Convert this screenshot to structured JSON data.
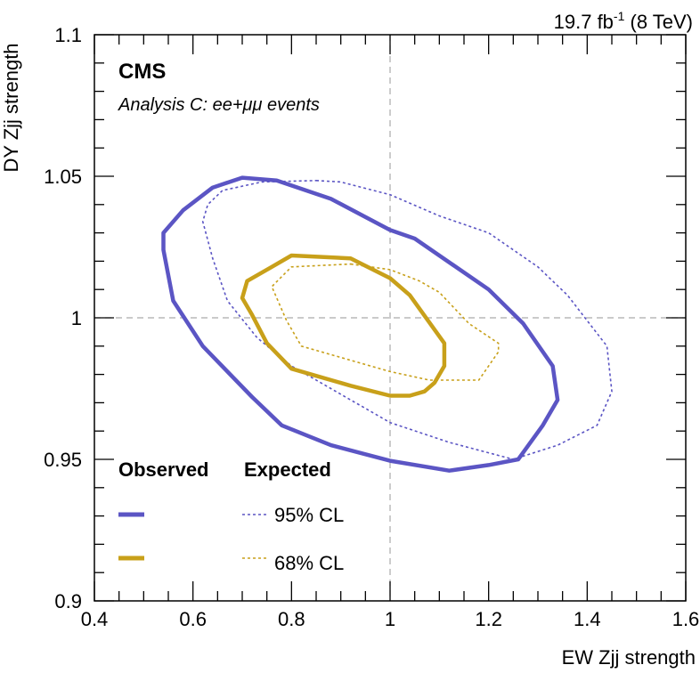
{
  "header": {
    "lumi_value": "19.7 fb",
    "lumi_exp": "-1",
    "lumi_energy": " (8 TeV)"
  },
  "labels": {
    "experiment": "CMS",
    "analysis": "Analysis C: ee+μμ events"
  },
  "legend": {
    "observed_header": "Observed",
    "expected_header": "Expected",
    "rows": [
      {
        "label": "95% CL",
        "color": "#5b55c4"
      },
      {
        "label": "68% CL",
        "color": "#c8a01a"
      }
    ]
  },
  "chart_data": {
    "type": "contour",
    "xlabel": "EW Zjj strength",
    "ylabel": "DY Zjj strength",
    "xlim": [
      0.4,
      1.6
    ],
    "ylim": [
      0.9,
      1.1
    ],
    "x_ticks": [
      "0.4",
      "0.6",
      "0.8",
      "1",
      "1.2",
      "1.4",
      "1.6"
    ],
    "y_ticks": [
      "0.9",
      "0.95",
      "1",
      "1.05",
      "1.1"
    ],
    "x_tick_values": [
      0.4,
      0.6,
      0.8,
      1.0,
      1.2,
      1.4,
      1.6
    ],
    "y_tick_values": [
      0.9,
      0.95,
      1.0,
      1.05,
      1.1
    ],
    "reference_lines": {
      "x": 1.0,
      "y": 1.0
    },
    "series": [
      {
        "name": "Observed 95% CL",
        "style": "solid",
        "color": "#5b55c4",
        "x": [
          0.7,
          0.77,
          0.88,
          1.0,
          1.05,
          1.2,
          1.27,
          1.33,
          1.34,
          1.31,
          1.26,
          1.2,
          1.12,
          1.0,
          0.88,
          0.78,
          0.72,
          0.62,
          0.56,
          0.54,
          0.54,
          0.58,
          0.64,
          0.7
        ],
        "y": [
          1.0495,
          1.0485,
          1.042,
          1.031,
          1.028,
          1.01,
          0.998,
          0.983,
          0.971,
          0.962,
          0.95,
          0.948,
          0.946,
          0.9495,
          0.955,
          0.962,
          0.972,
          0.99,
          1.006,
          1.024,
          1.03,
          1.038,
          1.046,
          1.0495
        ]
      },
      {
        "name": "Expected 95% CL",
        "style": "dashed",
        "color": "#5b55c4",
        "x": [
          0.85,
          0.9,
          1.0,
          1.1,
          1.2,
          1.3,
          1.36,
          1.44,
          1.45,
          1.42,
          1.34,
          1.25,
          1.12,
          1.0,
          0.88,
          0.8,
          0.73,
          0.67,
          0.64,
          0.62,
          0.63,
          0.66,
          0.74,
          0.85
        ],
        "y": [
          1.0485,
          1.048,
          1.0435,
          1.036,
          1.03,
          1.018,
          1.008,
          0.99,
          0.974,
          0.962,
          0.955,
          0.95,
          0.956,
          0.963,
          0.975,
          0.983,
          0.993,
          1.006,
          1.021,
          1.034,
          1.04,
          1.045,
          1.048,
          1.0485
        ]
      },
      {
        "name": "Observed 68% CL",
        "style": "solid",
        "color": "#c8a01a",
        "x": [
          0.8,
          0.92,
          1.0,
          1.04,
          1.11,
          1.11,
          1.09,
          1.07,
          1.04,
          1.0,
          0.92,
          0.8,
          0.75,
          0.72,
          0.7,
          0.71,
          0.76,
          0.8
        ],
        "y": [
          1.022,
          1.021,
          1.014,
          1.008,
          0.991,
          0.983,
          0.977,
          0.974,
          0.9725,
          0.9725,
          0.976,
          0.982,
          0.991,
          1.001,
          1.007,
          1.013,
          1.018,
          1.022
        ]
      },
      {
        "name": "Expected 68% CL",
        "style": "dashed",
        "color": "#c8a01a",
        "x": [
          0.92,
          1.0,
          1.06,
          1.1,
          1.16,
          1.22,
          1.22,
          1.18,
          1.15,
          1.08,
          1.0,
          0.92,
          0.82,
          0.79,
          0.77,
          0.76,
          0.8,
          0.92
        ],
        "y": [
          1.019,
          1.017,
          1.013,
          1.009,
          0.998,
          0.991,
          0.988,
          0.978,
          0.978,
          0.978,
          0.981,
          0.985,
          0.99,
          0.999,
          1.007,
          1.011,
          1.018,
          1.019
        ]
      }
    ],
    "frame": {
      "ticks_top": true,
      "ticks_right": true
    }
  }
}
